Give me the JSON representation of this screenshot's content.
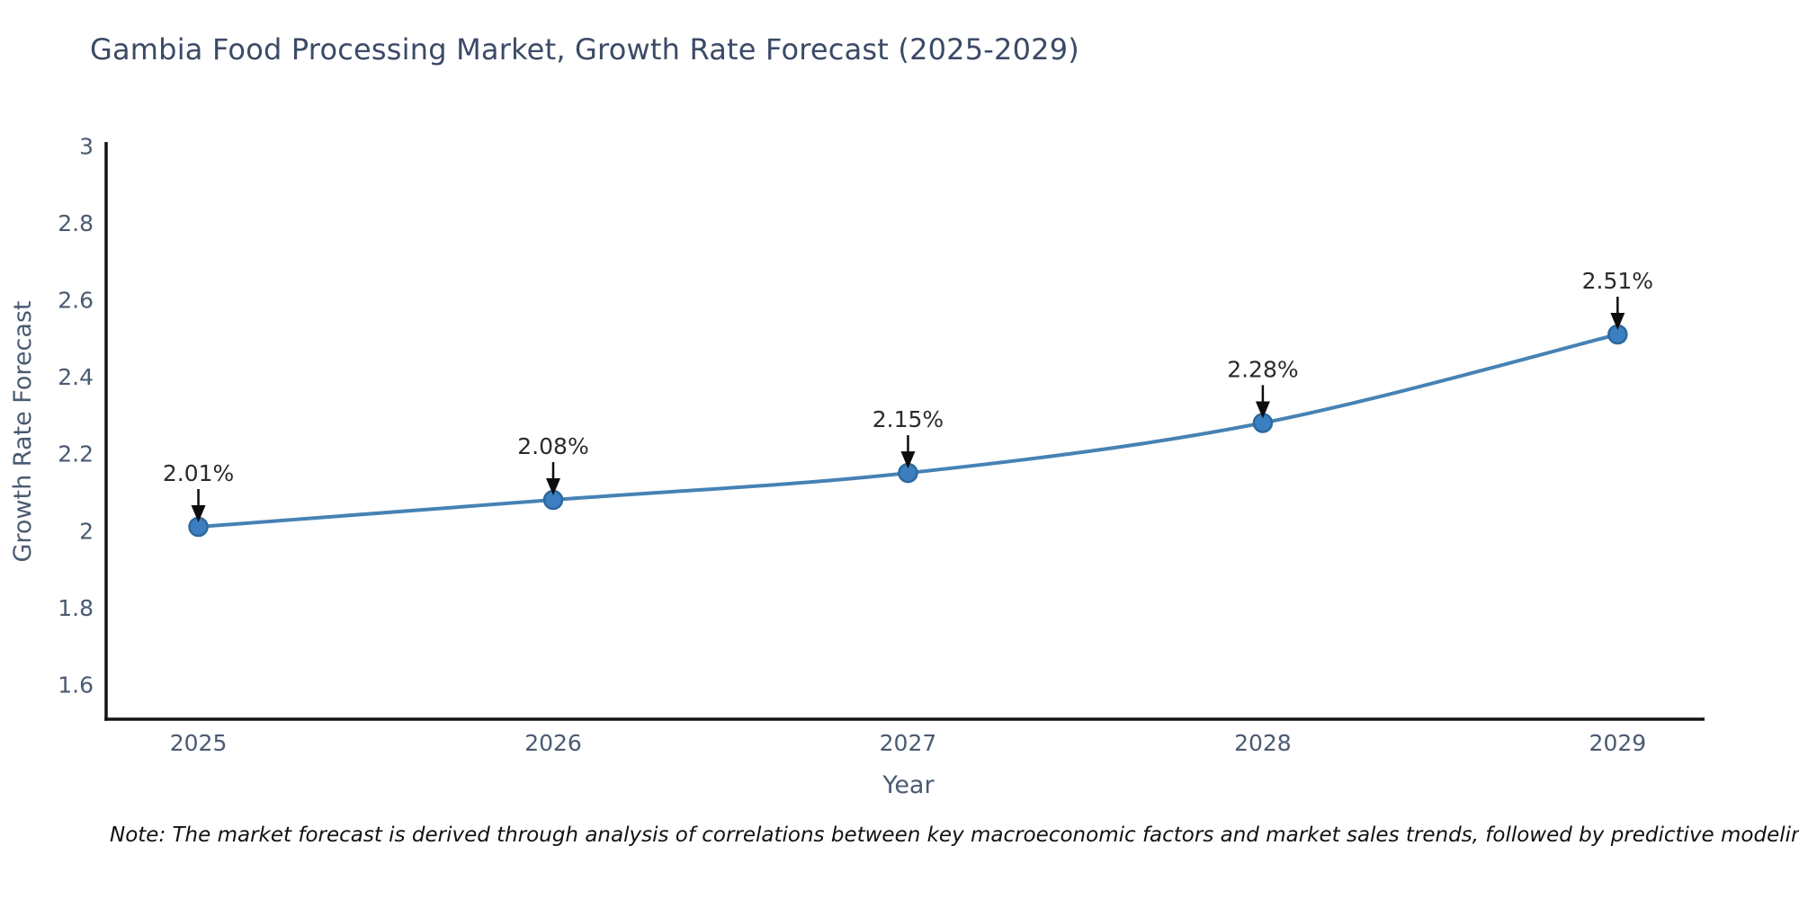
{
  "title": "Gambia Food Processing Market, Growth Rate Forecast (2025-2029)",
  "note": "Note: The market forecast is derived through analysis of correlations between key macroeconomic factors and market sales trends, followed by predictive modeling to project future sales",
  "chart_data": {
    "type": "line",
    "title": "Gambia Food Processing Market, Growth Rate Forecast (2025-2029)",
    "xlabel": "Year",
    "ylabel": "Growth Rate Forecast",
    "x": [
      2025,
      2026,
      2027,
      2028,
      2029
    ],
    "values": [
      2.01,
      2.08,
      2.15,
      2.28,
      2.51
    ],
    "point_labels": [
      "2.01%",
      "2.08%",
      "2.15%",
      "2.28%",
      "2.51%"
    ],
    "xtick_labels": [
      "2025",
      "2026",
      "2027",
      "2028",
      "2029"
    ],
    "yticks": [
      3,
      2.8,
      2.6,
      2.4,
      2.2,
      2,
      1.8,
      1.6
    ],
    "ytick_labels": [
      "3",
      "2.8",
      "2.6",
      "2.4",
      "2.2",
      "2",
      "1.8",
      "1.6"
    ],
    "xlim": [
      2024.74,
      2029.245
    ],
    "ylim": [
      1.51,
      3.01
    ],
    "grid": false,
    "legend": "none",
    "annotation_style": "down-arrow",
    "colors": {
      "line": "#4682b4",
      "marker_fill": "#3c7fc0",
      "marker_edge": "#2d689e",
      "annotation_text": "#2b2b2b",
      "arrow": "#0d0d0d",
      "axis_spine": "#131313",
      "tick_label": "#4a5a72",
      "title": "#3b4a66"
    }
  }
}
